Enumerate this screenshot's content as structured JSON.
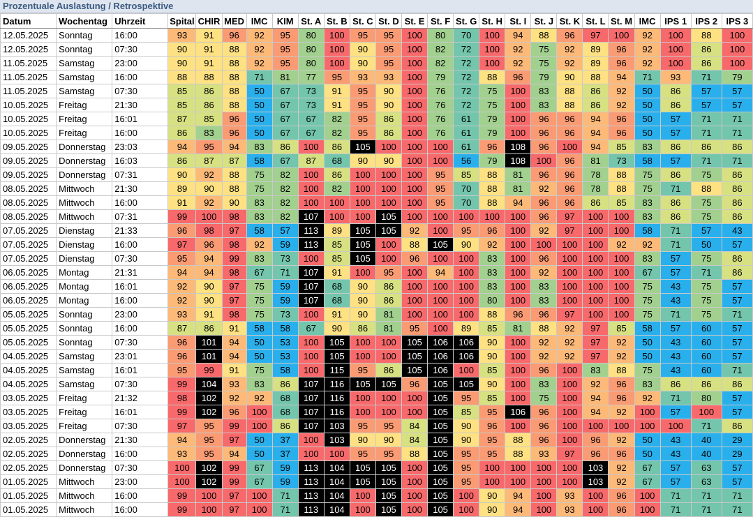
{
  "title": "Prozentuale Auslastung / Retrospektive",
  "columns": [
    "Datum",
    "Wochentag",
    "Uhrzeit",
    "Spital",
    "CHIR",
    "MED",
    "IMC",
    "KIM",
    "St. A",
    "St. B",
    "St. C",
    "St. D",
    "St. E",
    "St. F",
    "St. G",
    "St. H",
    "St. I",
    "St. J",
    "St. K",
    "St. L",
    "St. M",
    "IMC",
    "IPS 1",
    "IPS 2",
    "IPS 3"
  ],
  "colors": {
    "black": "#000000",
    "red": "#f8696b",
    "salmon": "#fa9b74",
    "orange": "#fdb978",
    "yellow": "#fee182",
    "lime": "#d7e182",
    "green": "#a2d08f",
    "teal": "#73c5ac",
    "blue": "#29b0ec"
  },
  "rows": [
    [
      "12.05.2025",
      "Sonntag",
      "16:00",
      [
        "93",
        "91",
        "96",
        "92",
        "95",
        "80",
        "100",
        "95",
        "95",
        "100",
        "80",
        "70",
        "100",
        "94",
        "88",
        "96",
        "97",
        "100",
        "92",
        "100",
        "88",
        "100"
      ]
    ],
    [
      "12.05.2025",
      "Sonntag",
      "07:30",
      [
        "90",
        "91",
        "88",
        "92",
        "95",
        "80",
        "100",
        "90",
        "95",
        "100",
        "82",
        "72",
        "100",
        "92",
        "75",
        "92",
        "89",
        "96",
        "92",
        "100",
        "86",
        "100"
      ]
    ],
    [
      "11.05.2025",
      "Samstag",
      "23:00",
      [
        "90",
        "91",
        "88",
        "92",
        "95",
        "80",
        "100",
        "90",
        "95",
        "100",
        "82",
        "72",
        "100",
        "92",
        "75",
        "92",
        "89",
        "96",
        "92",
        "100",
        "86",
        "100"
      ]
    ],
    [
      "11.05.2025",
      "Samstag",
      "16:00",
      [
        "88",
        "88",
        "88",
        "71",
        "81",
        "77",
        "95",
        "93",
        "93",
        "100",
        "79",
        "72",
        "88",
        "96",
        "79",
        "90",
        "88",
        "94",
        "71",
        "93",
        "71",
        "79"
      ]
    ],
    [
      "11.05.2025",
      "Samstag",
      "07:30",
      [
        "85",
        "86",
        "88",
        "50",
        "67",
        "73",
        "91",
        "95",
        "90",
        "100",
        "76",
        "72",
        "75",
        "100",
        "83",
        "88",
        "86",
        "92",
        "50",
        "86",
        "57",
        "57"
      ]
    ],
    [
      "10.05.2025",
      "Freitag",
      "21:30",
      [
        "85",
        "86",
        "88",
        "50",
        "67",
        "73",
        "91",
        "95",
        "90",
        "100",
        "76",
        "72",
        "75",
        "100",
        "83",
        "88",
        "86",
        "92",
        "50",
        "86",
        "57",
        "57"
      ]
    ],
    [
      "10.05.2025",
      "Freitag",
      "16:01",
      [
        "87",
        "85",
        "96",
        "50",
        "67",
        "67",
        "82",
        "95",
        "86",
        "100",
        "76",
        "61",
        "79",
        "100",
        "96",
        "96",
        "94",
        "96",
        "50",
        "57",
        "71",
        "71"
      ]
    ],
    [
      "10.05.2025",
      "Freitag",
      "16:00",
      [
        "86",
        "83",
        "96",
        "50",
        "67",
        "67",
        "82",
        "95",
        "86",
        "100",
        "76",
        "61",
        "79",
        "100",
        "96",
        "96",
        "94",
        "96",
        "50",
        "57",
        "71",
        "71"
      ]
    ],
    [
      "09.05.2025",
      "Donnerstag",
      "23:03",
      [
        "94",
        "95",
        "94",
        "83",
        "86",
        "100",
        "86",
        "105",
        "100",
        "100",
        "100",
        "61",
        "96",
        "108",
        "96",
        "100",
        "94",
        "85",
        "83",
        "86",
        "86",
        "86"
      ]
    ],
    [
      "09.05.2025",
      "Donnerstag",
      "16:03",
      [
        "86",
        "87",
        "87",
        "58",
        "67",
        "87",
        "68",
        "90",
        "90",
        "100",
        "100",
        "56",
        "79",
        "108",
        "100",
        "96",
        "81",
        "73",
        "58",
        "57",
        "71",
        "71"
      ]
    ],
    [
      "09.05.2025",
      "Donnerstag",
      "07:31",
      [
        "90",
        "92",
        "88",
        "75",
        "82",
        "100",
        "86",
        "100",
        "100",
        "100",
        "95",
        "85",
        "88",
        "81",
        "96",
        "96",
        "78",
        "88",
        "75",
        "86",
        "75",
        "86"
      ]
    ],
    [
      "08.05.2025",
      "Mittwoch",
      "21:30",
      [
        "89",
        "90",
        "88",
        "75",
        "82",
        "100",
        "82",
        "100",
        "100",
        "100",
        "95",
        "70",
        "88",
        "81",
        "92",
        "96",
        "78",
        "88",
        "75",
        "71",
        "88",
        "86"
      ]
    ],
    [
      "08.05.2025",
      "Mittwoch",
      "16:00",
      [
        "91",
        "92",
        "90",
        "83",
        "82",
        "100",
        "100",
        "100",
        "100",
        "100",
        "95",
        "70",
        "88",
        "94",
        "96",
        "96",
        "86",
        "85",
        "83",
        "86",
        "75",
        "86"
      ]
    ],
    [
      "08.05.2025",
      "Mittwoch",
      "07:31",
      [
        "99",
        "100",
        "98",
        "83",
        "82",
        "107",
        "100",
        "100",
        "105",
        "100",
        "100",
        "100",
        "100",
        "100",
        "96",
        "97",
        "100",
        "100",
        "83",
        "86",
        "75",
        "86"
      ]
    ],
    [
      "07.05.2025",
      "Dienstag",
      "21:33",
      [
        "96",
        "98",
        "97",
        "58",
        "57",
        "113",
        "89",
        "105",
        "105",
        "92",
        "100",
        "95",
        "96",
        "100",
        "92",
        "97",
        "100",
        "100",
        "58",
        "71",
        "57",
        "43"
      ]
    ],
    [
      "07.05.2025",
      "Dienstag",
      "16:00",
      [
        "97",
        "96",
        "98",
        "92",
        "59",
        "113",
        "85",
        "105",
        "100",
        "88",
        "105",
        "90",
        "92",
        "100",
        "100",
        "100",
        "100",
        "92",
        "92",
        "71",
        "50",
        "57"
      ]
    ],
    [
      "07.05.2025",
      "Dienstag",
      "07:30",
      [
        "95",
        "94",
        "99",
        "83",
        "73",
        "100",
        "85",
        "105",
        "100",
        "96",
        "100",
        "100",
        "83",
        "100",
        "96",
        "100",
        "100",
        "100",
        "83",
        "57",
        "75",
        "86"
      ]
    ],
    [
      "06.05.2025",
      "Montag",
      "21:31",
      [
        "94",
        "94",
        "98",
        "67",
        "71",
        "107",
        "91",
        "100",
        "95",
        "100",
        "94",
        "100",
        "83",
        "100",
        "92",
        "100",
        "100",
        "100",
        "67",
        "57",
        "71",
        "86"
      ]
    ],
    [
      "06.05.2025",
      "Montag",
      "16:01",
      [
        "92",
        "90",
        "97",
        "75",
        "59",
        "107",
        "68",
        "90",
        "86",
        "100",
        "100",
        "100",
        "83",
        "100",
        "83",
        "100",
        "100",
        "100",
        "75",
        "43",
        "75",
        "57"
      ]
    ],
    [
      "06.05.2025",
      "Montag",
      "16:00",
      [
        "92",
        "90",
        "97",
        "75",
        "59",
        "107",
        "68",
        "90",
        "86",
        "100",
        "100",
        "100",
        "80",
        "100",
        "83",
        "100",
        "100",
        "100",
        "75",
        "43",
        "75",
        "57"
      ]
    ],
    [
      "05.05.2025",
      "Sonntag",
      "23:00",
      [
        "93",
        "91",
        "98",
        "75",
        "73",
        "100",
        "91",
        "90",
        "81",
        "100",
        "100",
        "100",
        "88",
        "96",
        "96",
        "97",
        "100",
        "100",
        "75",
        "71",
        "75",
        "71"
      ]
    ],
    [
      "05.05.2025",
      "Sonntag",
      "16:00",
      [
        "87",
        "86",
        "91",
        "58",
        "58",
        "67",
        "90",
        "86",
        "81",
        "95",
        "100",
        "89",
        "85",
        "81",
        "88",
        "92",
        "97",
        "85",
        "58",
        "57",
        "60",
        "57"
      ]
    ],
    [
      "05.05.2025",
      "Sonntag",
      "07:30",
      [
        "96",
        "101",
        "94",
        "50",
        "53",
        "100",
        "105",
        "100",
        "100",
        "105",
        "106",
        "106",
        "90",
        "100",
        "92",
        "92",
        "97",
        "92",
        "50",
        "43",
        "60",
        "57"
      ]
    ],
    [
      "04.05.2025",
      "Samstag",
      "23:01",
      [
        "96",
        "101",
        "94",
        "50",
        "53",
        "100",
        "105",
        "100",
        "100",
        "105",
        "106",
        "106",
        "90",
        "100",
        "92",
        "92",
        "97",
        "92",
        "50",
        "43",
        "60",
        "57"
      ]
    ],
    [
      "04.05.2025",
      "Samstag",
      "16:01",
      [
        "95",
        "99",
        "91",
        "75",
        "58",
        "100",
        "115",
        "95",
        "86",
        "105",
        "106",
        "100",
        "85",
        "100",
        "96",
        "100",
        "83",
        "88",
        "75",
        "43",
        "60",
        "71"
      ]
    ],
    [
      "04.05.2025",
      "Samstag",
      "07:30",
      [
        "99",
        "104",
        "93",
        "83",
        "86",
        "107",
        "116",
        "105",
        "105",
        "96",
        "105",
        "105",
        "90",
        "100",
        "83",
        "100",
        "92",
        "96",
        "83",
        "86",
        "86",
        "86"
      ]
    ],
    [
      "03.05.2025",
      "Freitag",
      "21:32",
      [
        "98",
        "102",
        "92",
        "92",
        "68",
        "107",
        "116",
        "100",
        "100",
        "100",
        "105",
        "95",
        "85",
        "100",
        "75",
        "100",
        "94",
        "96",
        "92",
        "71",
        "80",
        "57"
      ]
    ],
    [
      "03.05.2025",
      "Freitag",
      "16:01",
      [
        "99",
        "102",
        "96",
        "100",
        "68",
        "107",
        "116",
        "100",
        "100",
        "100",
        "105",
        "85",
        "95",
        "106",
        "96",
        "100",
        "94",
        "92",
        "100",
        "57",
        "100",
        "57"
      ]
    ],
    [
      "03.05.2025",
      "Freitag",
      "07:30",
      [
        "97",
        "95",
        "99",
        "100",
        "86",
        "107",
        "103",
        "95",
        "95",
        "84",
        "105",
        "90",
        "96",
        "100",
        "96",
        "100",
        "100",
        "100",
        "100",
        "100",
        "71",
        "86"
      ]
    ],
    [
      "02.05.2025",
      "Donnerstag",
      "21:30",
      [
        "94",
        "95",
        "97",
        "50",
        "37",
        "100",
        "103",
        "90",
        "90",
        "84",
        "105",
        "90",
        "95",
        "88",
        "96",
        "100",
        "96",
        "92",
        "50",
        "43",
        "40",
        "29"
      ]
    ],
    [
      "02.05.2025",
      "Donnerstag",
      "16:00",
      [
        "93",
        "95",
        "94",
        "50",
        "37",
        "100",
        "100",
        "95",
        "95",
        "88",
        "105",
        "95",
        "95",
        "88",
        "93",
        "97",
        "96",
        "96",
        "50",
        "43",
        "40",
        "29"
      ]
    ],
    [
      "02.05.2025",
      "Donnerstag",
      "07:30",
      [
        "100",
        "102",
        "99",
        "67",
        "59",
        "113",
        "104",
        "105",
        "105",
        "100",
        "105",
        "95",
        "100",
        "100",
        "100",
        "100",
        "103",
        "92",
        "67",
        "57",
        "63",
        "57"
      ]
    ],
    [
      "01.05.2025",
      "Mittwoch",
      "23:00",
      [
        "100",
        "102",
        "99",
        "67",
        "59",
        "113",
        "104",
        "105",
        "105",
        "100",
        "105",
        "95",
        "100",
        "100",
        "100",
        "100",
        "103",
        "92",
        "67",
        "57",
        "63",
        "57"
      ]
    ],
    [
      "01.05.2025",
      "Mittwoch",
      "16:00",
      [
        "99",
        "100",
        "97",
        "100",
        "71",
        "113",
        "104",
        "100",
        "105",
        "100",
        "105",
        "100",
        "90",
        "94",
        "100",
        "93",
        "100",
        "96",
        "100",
        "71",
        "71",
        "71"
      ]
    ],
    [
      "01.05.2025",
      "Mittwoch",
      "16:00",
      [
        "99",
        "100",
        "97",
        "100",
        "71",
        "113",
        "104",
        "100",
        "105",
        "100",
        "105",
        "100",
        "90",
        "94",
        "100",
        "93",
        "100",
        "96",
        "100",
        "71",
        "71",
        "71"
      ]
    ]
  ]
}
